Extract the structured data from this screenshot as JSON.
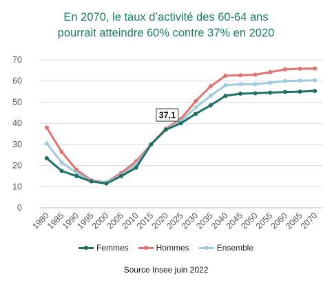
{
  "chart_data": {
    "type": "line",
    "title": "En 2070, le taux d’activité des 60-64 ans pourrait atteindre 60% contre 37% en 2020",
    "title_lines": [
      "En 2070, le taux d’activité des 60-64 ans",
      "pourrait atteindre 60% contre 37% en 2020"
    ],
    "source": "Source Insee juin 2022",
    "x": [
      "1980",
      "1985",
      "1990",
      "1995",
      "2000",
      "2005",
      "2010",
      "2015",
      "2020",
      "2025",
      "2030",
      "2035",
      "2040",
      "2045",
      "2050",
      "2055",
      "2060",
      "2065",
      "2070"
    ],
    "ylim": [
      0,
      70
    ],
    "yticks": [
      0,
      10,
      20,
      30,
      40,
      50,
      60,
      70
    ],
    "grid": true,
    "legend_position": "bottom",
    "annotation": {
      "x": "2020",
      "y": 37.1,
      "text": "37,1"
    },
    "series": [
      {
        "name": "Femmes",
        "color": "#1e6f63",
        "values": [
          23.5,
          17.5,
          15,
          12.5,
          11.5,
          15,
          19,
          30,
          37,
          40,
          44.5,
          48.5,
          53,
          54,
          54.2,
          54.5,
          54.8,
          55,
          55.3
        ]
      },
      {
        "name": "Hommes",
        "color": "#e07370",
        "values": [
          38,
          26.5,
          18,
          13,
          12,
          16.5,
          22,
          30,
          37.5,
          42,
          50.5,
          57.5,
          62.5,
          62.7,
          63,
          64.2,
          65.5,
          65.8,
          65.9
        ]
      },
      {
        "name": "Ensemble",
        "color": "#9fcbdc",
        "values": [
          30.5,
          21.5,
          16.5,
          12.5,
          12,
          15.5,
          20.5,
          30,
          37.1,
          41,
          47.5,
          53,
          58,
          58.5,
          58.5,
          59.2,
          60,
          60.2,
          60.3
        ]
      }
    ]
  }
}
